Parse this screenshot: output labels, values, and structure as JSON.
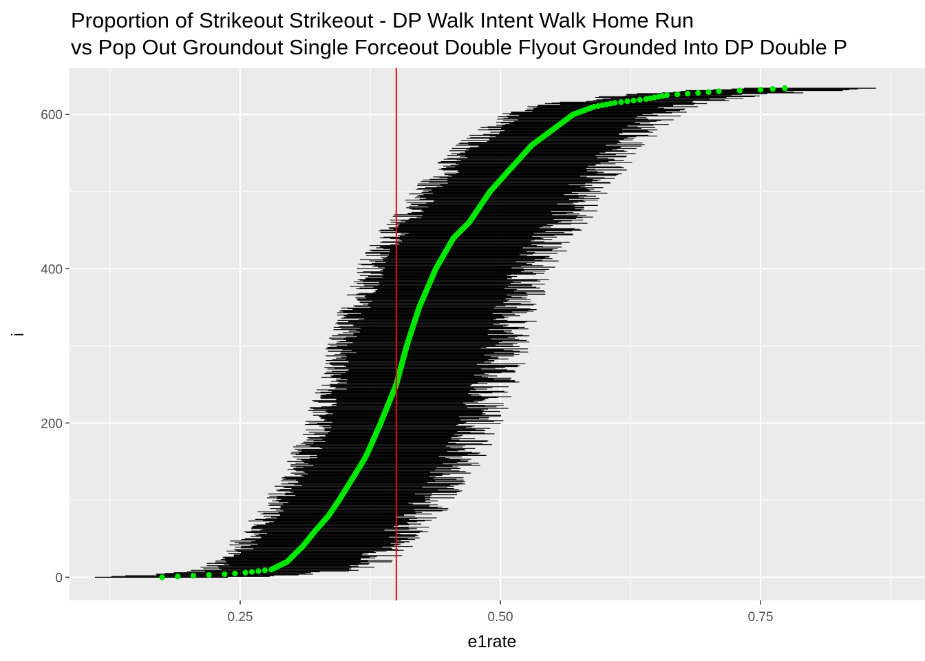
{
  "chart_data": {
    "type": "scatter",
    "title": [
      "Proportion of  Strikeout Strikeout - DP Walk Intent Walk Home Run",
      "vs Pop Out Groundout Single Forceout Double Flyout Grounded Into DP Double P"
    ],
    "xlabel": "e1rate",
    "ylabel": "i",
    "xlim": [
      0.086,
      0.908
    ],
    "ylim": [
      -30,
      660
    ],
    "x_ticks": [
      0.25,
      0.5,
      0.75
    ],
    "x_tick_labels": [
      "0.25",
      "0.50",
      "0.75"
    ],
    "y_ticks": [
      0,
      200,
      400,
      600
    ],
    "y_tick_labels": [
      "0",
      "200",
      "400",
      "600"
    ],
    "grid": true,
    "legend": "none",
    "n_points": 635,
    "reference_line": {
      "orientation": "vertical",
      "x": 0.4,
      "color": "#ff0000"
    },
    "point_color": "#00e600",
    "interval_color": "#000000",
    "panel_background": "#ebebeb",
    "quantile_curve": {
      "i": [
        0,
        2,
        4,
        6,
        10,
        20,
        40,
        60,
        80,
        100,
        150,
        160,
        200,
        250,
        300,
        350,
        400,
        440,
        460,
        500,
        530,
        560,
        580,
        600,
        610,
        615,
        620,
        625,
        628,
        630,
        632,
        635
      ],
      "e1rate": [
        0.175,
        0.205,
        0.235,
        0.255,
        0.28,
        0.295,
        0.31,
        0.322,
        0.335,
        0.345,
        0.368,
        0.372,
        0.385,
        0.4,
        0.41,
        0.422,
        0.438,
        0.455,
        0.47,
        0.49,
        0.51,
        0.53,
        0.55,
        0.57,
        0.59,
        0.61,
        0.64,
        0.66,
        0.69,
        0.71,
        0.75,
        0.785
      ]
    },
    "interval_halfwidth": {
      "i": [
        0,
        20,
        100,
        200,
        300,
        400,
        500,
        560,
        600,
        620,
        635
      ],
      "lower": [
        0.06,
        0.06,
        0.058,
        0.06,
        0.062,
        0.063,
        0.063,
        0.06,
        0.058,
        0.05,
        0.04
      ],
      "upper": [
        0.07,
        0.085,
        0.09,
        0.095,
        0.095,
        0.095,
        0.093,
        0.09,
        0.085,
        0.08,
        0.085
      ]
    }
  }
}
